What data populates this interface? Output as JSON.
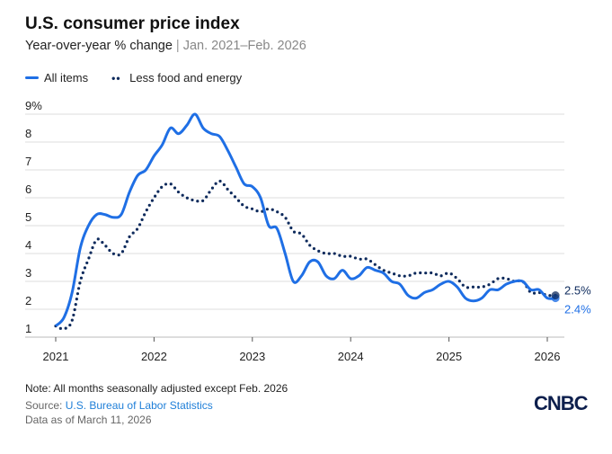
{
  "chart_data": {
    "type": "line",
    "title": "U.S. consumer price index",
    "subtitle": "Year-over-year % change",
    "subtitle_range": "Jan. 2021–Feb. 2026",
    "x_start": "2021-01",
    "x_end": "2026-02",
    "x_ticks": [
      "2021",
      "2022",
      "2023",
      "2024",
      "2025",
      "2026"
    ],
    "y_ticks": [
      "1",
      "2",
      "3",
      "4",
      "5",
      "6",
      "7",
      "8",
      "9%"
    ],
    "ylim": [
      1,
      9
    ],
    "grid": true,
    "legend_position": "top-left",
    "series": [
      {
        "name": "All items",
        "color": "#1f6fe5",
        "style": "solid",
        "end_label": "2.4%",
        "values": [
          1.4,
          1.7,
          2.6,
          4.2,
          5.0,
          5.4,
          5.4,
          5.3,
          5.4,
          6.2,
          6.8,
          7.0,
          7.5,
          7.9,
          8.5,
          8.3,
          8.6,
          9.0,
          8.5,
          8.3,
          8.2,
          7.7,
          7.1,
          6.5,
          6.4,
          6.0,
          5.0,
          4.9,
          4.0,
          3.0,
          3.2,
          3.7,
          3.7,
          3.2,
          3.1,
          3.4,
          3.1,
          3.2,
          3.5,
          3.4,
          3.3,
          3.0,
          2.9,
          2.5,
          2.4,
          2.6,
          2.7,
          2.9,
          3.0,
          2.8,
          2.4,
          2.3,
          2.4,
          2.7,
          2.7,
          2.9,
          3.0,
          3.0,
          2.7,
          2.7,
          2.4,
          2.4
        ]
      },
      {
        "name": "Less food and energy",
        "color": "#0d2a5c",
        "style": "dotted",
        "end_label": "2.5%",
        "values": [
          1.4,
          1.3,
          1.6,
          3.0,
          3.8,
          4.5,
          4.3,
          4.0,
          4.0,
          4.6,
          4.9,
          5.5,
          6.0,
          6.4,
          6.5,
          6.2,
          6.0,
          5.9,
          5.9,
          6.3,
          6.6,
          6.3,
          6.0,
          5.7,
          5.6,
          5.5,
          5.6,
          5.5,
          5.3,
          4.8,
          4.7,
          4.3,
          4.1,
          4.0,
          4.0,
          3.9,
          3.9,
          3.8,
          3.8,
          3.6,
          3.4,
          3.3,
          3.2,
          3.2,
          3.3,
          3.3,
          3.3,
          3.2,
          3.3,
          3.1,
          2.8,
          2.8,
          2.8,
          2.9,
          3.1,
          3.1,
          3.0,
          3.0,
          2.6,
          2.6,
          2.5,
          2.5
        ]
      }
    ]
  },
  "footer": {
    "note": "Note: All months seasonally adjusted except Feb. 2026",
    "source_prefix": "Source: ",
    "source_link": "U.S. Bureau of Labor Statistics",
    "data_as_of": "Data as of March 11, 2026"
  },
  "logo": "CNBC"
}
